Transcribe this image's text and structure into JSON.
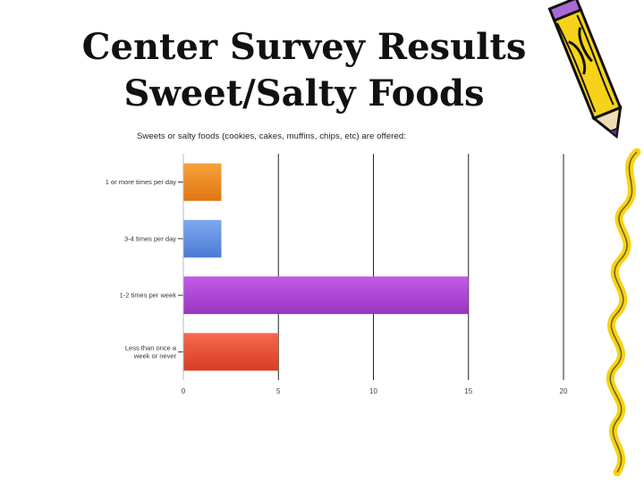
{
  "slide": {
    "title_line1": "Center Survey Results",
    "title_line2": "Sweet/Salty Foods"
  },
  "chart_data": {
    "type": "bar",
    "orientation": "horizontal",
    "title": "Sweets or salty foods (cookies, cakes, muffins, chips, etc) are offered:",
    "categories": [
      "1 or more times per day",
      "3-4 times per day",
      "1-2 times per week",
      "Less than once a week or never"
    ],
    "category_label_lines": [
      [
        "1 or more times per day"
      ],
      [
        "3-4 times per day"
      ],
      [
        "1-2 times per week"
      ],
      [
        "Less than once a",
        "week or never"
      ]
    ],
    "values": [
      2,
      2,
      15,
      5
    ],
    "colors": [
      [
        "#f7a23a",
        "#e07612"
      ],
      [
        "#7fa9ef",
        "#4a7ad6"
      ],
      [
        "#c05ce6",
        "#9a34c4"
      ],
      [
        "#f46a4e",
        "#d83c24"
      ]
    ],
    "x_ticks": [
      0,
      5,
      10,
      15,
      20
    ],
    "xlim": [
      0,
      20
    ],
    "grid": true,
    "legend": "none"
  },
  "decor": {
    "pencil_icon": "pencil-icon",
    "squiggle": "squiggle-border"
  }
}
